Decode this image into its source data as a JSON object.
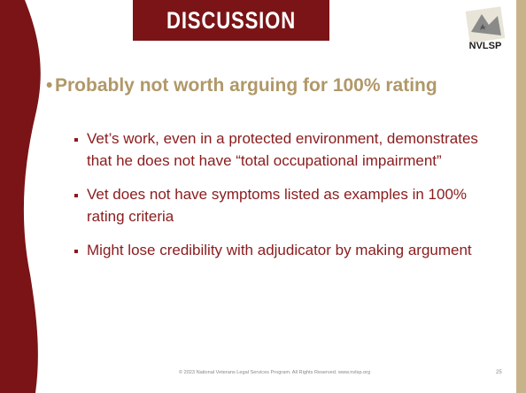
{
  "header": {
    "title": "DISCUSSION"
  },
  "logo": {
    "label": "NVLSP"
  },
  "content": {
    "heading": "Probably not worth arguing for 100% rating",
    "items": [
      "Vet’s work, even in a protected environment, demonstrates that he does not have “total occupational impairment”",
      "Vet does not have symptoms listed as examples in 100% rating criteria",
      "Might lose credibility with adjudicator by making argument"
    ]
  },
  "footer": {
    "text": "© 2023 National Veterans Legal Services Program. All Rights Reserved.  www.nvlsp.org",
    "page": "25"
  }
}
